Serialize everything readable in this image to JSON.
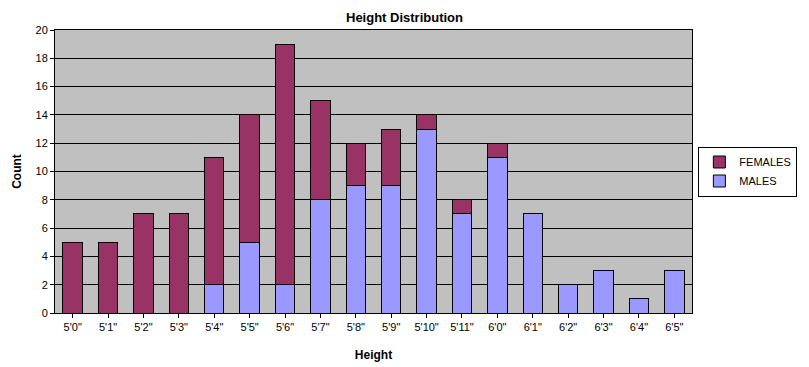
{
  "chart_data": {
    "type": "bar",
    "title": "Height Distribution",
    "x_label": "Height",
    "y_label": "Count",
    "categories": [
      "5'0\"",
      "5'1\"",
      "5'2\"",
      "5'3\"",
      "5'4\"",
      "5'5\"",
      "5'6\"",
      "5'7\"",
      "5'8\"",
      "5'9\"",
      "5'10\"",
      "5'11\"",
      "6'0\"",
      "6'1\"",
      "6'2\"",
      "6'3\"",
      "6'4\"",
      "6'5\""
    ],
    "series": [
      {
        "name": "MALES",
        "color": "#9999ff",
        "values": [
          0,
          0,
          0,
          0,
          2,
          5,
          2,
          8,
          9,
          9,
          13,
          7,
          11,
          7,
          2,
          3,
          1,
          3
        ]
      },
      {
        "name": "FEMALES",
        "color": "#993366",
        "values": [
          5,
          5,
          7,
          7,
          9,
          9,
          17,
          7,
          3,
          4,
          1,
          1,
          1,
          0,
          0,
          0,
          0,
          0
        ]
      }
    ],
    "stacked": true,
    "ylim": [
      0,
      20
    ],
    "yticks": [
      0,
      2,
      4,
      6,
      8,
      10,
      12,
      14,
      16,
      18,
      20
    ],
    "grid": true,
    "legend": "right"
  }
}
